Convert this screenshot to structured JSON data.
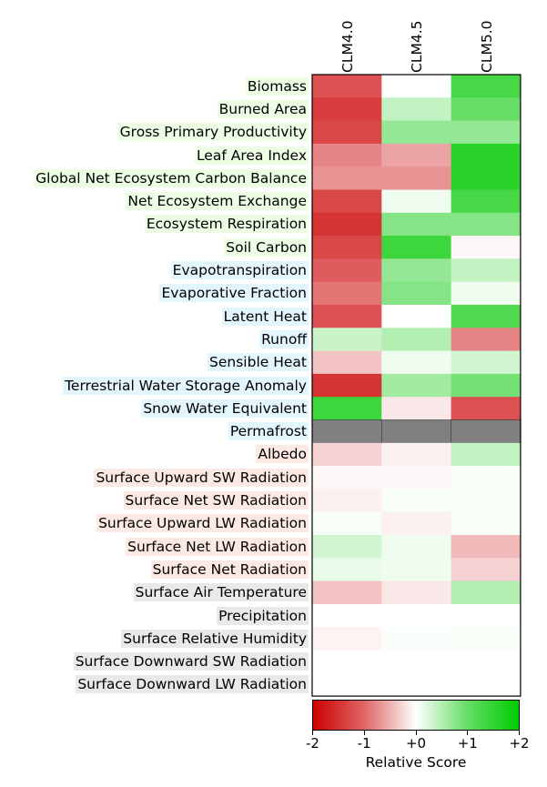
{
  "chart_data": {
    "type": "heatmap",
    "columns": [
      "CLM4.0",
      "CLM4.5",
      "CLM5.0"
    ],
    "rows": [
      {
        "name": "Biomass",
        "group": "ecosystem",
        "values": [
          -1.2,
          0.0,
          1.3
        ]
      },
      {
        "name": "Burned Area",
        "group": "ecosystem",
        "values": [
          -1.4,
          0.4,
          1.0
        ]
      },
      {
        "name": "Gross Primary Productivity",
        "group": "ecosystem",
        "values": [
          -1.3,
          0.7,
          0.7
        ]
      },
      {
        "name": "Leaf Area Index",
        "group": "ecosystem",
        "values": [
          -0.8,
          -0.6,
          1.6
        ]
      },
      {
        "name": "Global Net Ecosystem Carbon Balance",
        "group": "ecosystem",
        "values": [
          -0.7,
          -0.7,
          1.6
        ]
      },
      {
        "name": "Net Ecosystem Exchange",
        "group": "ecosystem",
        "values": [
          -1.3,
          0.1,
          1.3
        ]
      },
      {
        "name": "Ecosystem Respiration",
        "group": "ecosystem",
        "values": [
          -1.5,
          0.8,
          0.8
        ]
      },
      {
        "name": "Soil Carbon",
        "group": "ecosystem",
        "values": [
          -1.3,
          1.4,
          -0.05
        ]
      },
      {
        "name": "Evapotranspiration",
        "group": "hydrology",
        "values": [
          -1.1,
          0.7,
          0.4
        ]
      },
      {
        "name": "Evaporative Fraction",
        "group": "hydrology",
        "values": [
          -0.9,
          0.8,
          0.1
        ]
      },
      {
        "name": "Latent Heat",
        "group": "hydrology",
        "values": [
          -1.2,
          0.0,
          1.2
        ]
      },
      {
        "name": "Runoff",
        "group": "hydrology",
        "values": [
          0.35,
          0.5,
          -0.8
        ]
      },
      {
        "name": "Sensible Heat",
        "group": "hydrology",
        "values": [
          -0.4,
          0.1,
          0.3
        ]
      },
      {
        "name": "Terrestrial Water Storage Anomaly",
        "group": "hydrology",
        "values": [
          -1.5,
          0.6,
          0.9
        ]
      },
      {
        "name": "Snow Water Equivalent",
        "group": "hydrology",
        "values": [
          1.4,
          -0.15,
          -1.2
        ]
      },
      {
        "name": "Permafrost",
        "group": "hydrology",
        "values": [
          null,
          null,
          null
        ]
      },
      {
        "name": "Albedo",
        "group": "radiation",
        "values": [
          -0.3,
          -0.1,
          0.4
        ]
      },
      {
        "name": "Surface Upward SW Radiation",
        "group": "radiation",
        "values": [
          -0.05,
          -0.05,
          0.05
        ]
      },
      {
        "name": "Surface Net SW Radiation",
        "group": "radiation",
        "values": [
          -0.1,
          0.05,
          0.05
        ]
      },
      {
        "name": "Surface Upward LW Radiation",
        "group": "radiation",
        "values": [
          0.05,
          -0.1,
          0.05
        ]
      },
      {
        "name": "Surface Net LW Radiation",
        "group": "radiation",
        "values": [
          0.3,
          0.1,
          -0.45
        ]
      },
      {
        "name": "Surface Net Radiation",
        "group": "radiation",
        "values": [
          0.15,
          0.1,
          -0.3
        ]
      },
      {
        "name": "Surface Air Temperature",
        "group": "forcing",
        "values": [
          -0.4,
          -0.15,
          0.5
        ]
      },
      {
        "name": "Precipitation",
        "group": "forcing",
        "values": [
          0.0,
          0.0,
          0.0
        ]
      },
      {
        "name": "Surface Relative Humidity",
        "group": "forcing",
        "values": [
          -0.08,
          0.03,
          0.05
        ]
      },
      {
        "name": "Surface Downward SW Radiation",
        "group": "forcing",
        "values": [
          0.0,
          0.0,
          0.0
        ]
      },
      {
        "name": "Surface Downward LW Radiation",
        "group": "forcing",
        "values": [
          0.0,
          0.0,
          0.0
        ]
      }
    ],
    "group_colors": {
      "ecosystem": "#ecfde4",
      "hydrology": "#e4f6fd",
      "radiation": "#fde9e4",
      "forcing": "#e9e9e9"
    },
    "missing_color": "#808080",
    "colormap": [
      "#cc0000",
      "#e06666",
      "#ffffff",
      "#66dd66",
      "#00cc00"
    ],
    "vmin": -2,
    "vmax": 2,
    "colorbar": {
      "ticks": [
        "-2",
        "-1",
        "+0",
        "+1",
        "+2"
      ],
      "label": "Relative Score"
    }
  }
}
